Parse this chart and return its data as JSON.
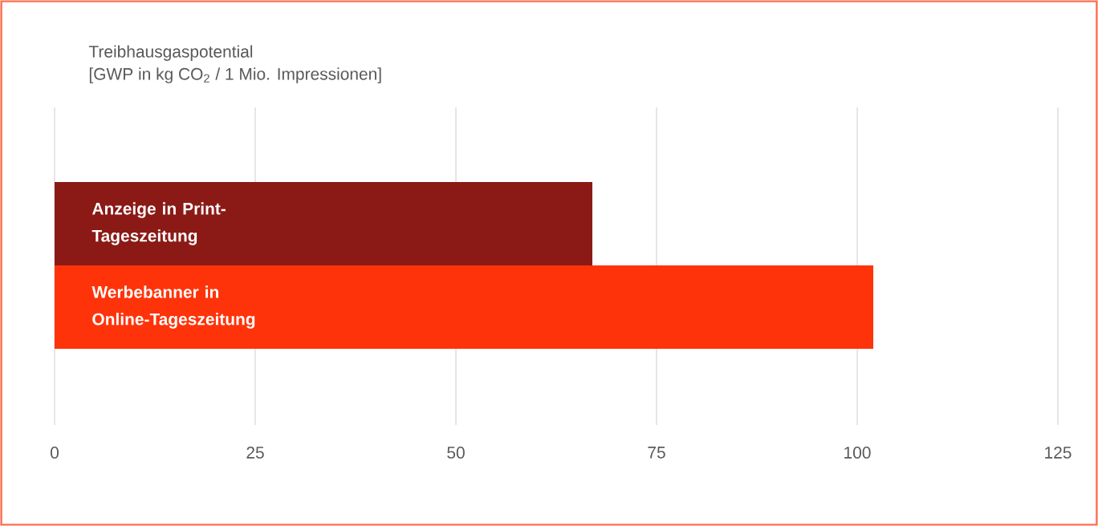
{
  "chart_data": {
    "type": "bar",
    "orientation": "horizontal",
    "title": "Treibhausgaspotential",
    "subtitle": "[GWP in kg CO$_{2}$ / 1 Mio. Impressionen]",
    "categories": [
      "Anzeige in Print-Tageszeitung",
      "Werbebanner in Online-Tageszeitung"
    ],
    "values": [
      67,
      102
    ],
    "colors": [
      "#8b1a16",
      "#ff330a"
    ],
    "xlim": [
      0,
      125
    ],
    "xticks": [
      0,
      25,
      50,
      75,
      100,
      125
    ],
    "grid": "x",
    "tick_labels": "x"
  }
}
